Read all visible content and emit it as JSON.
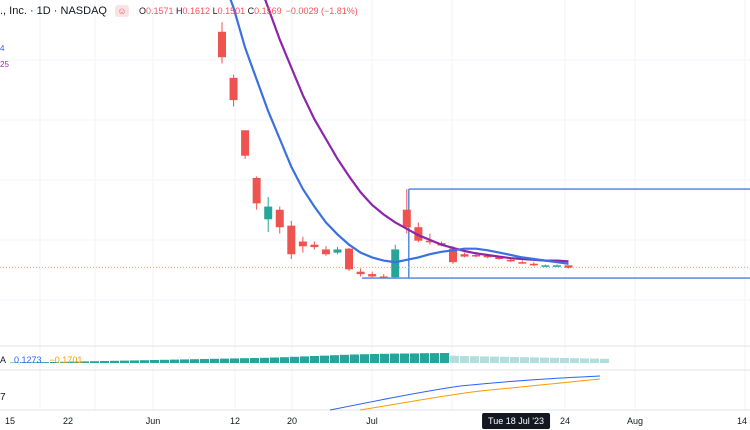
{
  "header": {
    "symbol": "., Inc. · 1D · NASDAQ",
    "emoji_icon": "face-icon",
    "open_label": "O",
    "open": "0.1571",
    "high_label": "H",
    "high": "0.1612",
    "low_label": "L",
    "low": "0.1501",
    "close_label": "C",
    "close": "0.1569",
    "change": "−0.0029 (−1.81%)"
  },
  "legend": {
    "ma_fast_suffix": "4",
    "ma_slow_suffix": "25"
  },
  "macd": {
    "prefix": "A",
    "macd_value": "0.1273",
    "signal_value": "−0.1701"
  },
  "pane_label": "7",
  "colors": {
    "up": "#26a69a",
    "down": "#ef5350",
    "ma_fast": "#3a70e0",
    "ma_slow": "#8e24aa",
    "range": "#4a7fe0",
    "grid": "#f0f3fa",
    "last_price": "#f7a26b",
    "macd_line": "#2962ff",
    "signal_line": "#ff9800"
  },
  "chart_data": {
    "type": "candlestick",
    "date_axis_labels": [
      "15",
      "22",
      "Jun",
      "12",
      "20",
      "Jul",
      "24",
      "Aug",
      "14"
    ],
    "crosshair_date": "Tue 18 Jul '23",
    "candles": [
      {
        "o": 3.1,
        "h": 3.22,
        "l": 2.7,
        "c": 2.78
      },
      {
        "o": 2.52,
        "h": 2.56,
        "l": 2.16,
        "c": 2.24
      },
      {
        "o": 1.86,
        "h": 1.86,
        "l": 1.5,
        "c": 1.54
      },
      {
        "o": 1.26,
        "h": 1.28,
        "l": 0.86,
        "c": 0.94
      },
      {
        "o": 0.74,
        "h": 1.02,
        "l": 0.58,
        "c": 0.9
      },
      {
        "o": 0.86,
        "h": 0.9,
        "l": 0.56,
        "c": 0.64
      },
      {
        "o": 0.66,
        "h": 0.72,
        "l": 0.24,
        "c": 0.3
      },
      {
        "o": 0.46,
        "h": 0.52,
        "l": 0.32,
        "c": 0.4
      },
      {
        "o": 0.42,
        "h": 0.46,
        "l": 0.36,
        "c": 0.39
      },
      {
        "o": 0.36,
        "h": 0.4,
        "l": 0.28,
        "c": 0.3
      },
      {
        "o": 0.32,
        "h": 0.39,
        "l": 0.3,
        "c": 0.36
      },
      {
        "o": 0.37,
        "h": 0.38,
        "l": 0.09,
        "c": 0.11
      },
      {
        "o": 0.08,
        "h": 0.12,
        "l": 0.02,
        "c": 0.05
      },
      {
        "o": 0.05,
        "h": 0.08,
        "l": 0.0,
        "c": 0.02
      },
      {
        "o": 0.02,
        "h": 0.05,
        "l": 0.0,
        "c": 0.01
      },
      {
        "o": 0.01,
        "h": 0.42,
        "l": 0.0,
        "c": 0.36
      },
      {
        "o": 0.86,
        "h": 1.12,
        "l": 0.56,
        "c": 0.64
      },
      {
        "o": 0.64,
        "h": 0.7,
        "l": 0.45,
        "c": 0.47
      },
      {
        "o": 0.47,
        "h": 0.56,
        "l": 0.42,
        "c": 0.45
      },
      {
        "o": 0.44,
        "h": 0.46,
        "l": 0.4,
        "c": 0.41
      },
      {
        "o": 0.37,
        "h": 0.4,
        "l": 0.18,
        "c": 0.2
      },
      {
        "o": 0.3,
        "h": 0.32,
        "l": 0.26,
        "c": 0.27
      },
      {
        "o": 0.29,
        "h": 0.33,
        "l": 0.26,
        "c": 0.28
      },
      {
        "o": 0.28,
        "h": 0.3,
        "l": 0.25,
        "c": 0.27
      },
      {
        "o": 0.26,
        "h": 0.28,
        "l": 0.23,
        "c": 0.24
      },
      {
        "o": 0.23,
        "h": 0.25,
        "l": 0.2,
        "c": 0.21
      },
      {
        "o": 0.2,
        "h": 0.22,
        "l": 0.18,
        "c": 0.19
      },
      {
        "o": 0.18,
        "h": 0.2,
        "l": 0.15,
        "c": 0.16
      },
      {
        "o": 0.16,
        "h": 0.17,
        "l": 0.15,
        "c": 0.16
      },
      {
        "o": 0.16,
        "h": 0.17,
        "l": 0.15,
        "c": 0.16
      },
      {
        "o": 0.16,
        "h": 0.16,
        "l": 0.12,
        "c": 0.13
      }
    ],
    "ma_fast": [
      3.8,
      3.4,
      2.9,
      2.5,
      2.1,
      1.75,
      1.4,
      1.12,
      0.9,
      0.7,
      0.55,
      0.42,
      0.32,
      0.26,
      0.22,
      0.2,
      0.23,
      0.26,
      0.3,
      0.33,
      0.35,
      0.37,
      0.37,
      0.35,
      0.32,
      0.29,
      0.26,
      0.24,
      0.22,
      0.2,
      0.18
    ],
    "ma_slow": [
      5.0,
      4.6,
      4.2,
      3.8,
      3.4,
      3.0,
      2.65,
      2.3,
      2.0,
      1.75,
      1.5,
      1.28,
      1.08,
      0.92,
      0.8,
      0.7,
      0.62,
      0.54,
      0.48,
      0.42,
      0.38,
      0.34,
      0.31,
      0.29,
      0.27,
      0.25,
      0.24,
      0.23,
      0.22,
      0.22,
      0.21
    ],
    "range_box": {
      "top": 1.12,
      "bottom": 0.0
    },
    "last_price": 0.16,
    "ylim": [
      -0.1,
      3.5
    ],
    "macd_hist": [
      -0.05,
      -0.06,
      -0.07,
      -0.09,
      -0.1,
      -0.12,
      -0.14,
      -0.16,
      -0.18,
      -0.2,
      -0.22,
      -0.24,
      -0.26,
      -0.28,
      -0.3,
      -0.32,
      -0.34,
      -0.36,
      -0.38,
      -0.4,
      -0.42,
      -0.44,
      -0.46,
      -0.48,
      -0.5,
      -0.52,
      -0.55,
      -0.58,
      -0.62,
      -0.66,
      -0.7,
      -0.74,
      -0.78,
      -0.82,
      -0.85,
      -0.88,
      -0.9,
      -0.92,
      -0.94,
      -0.95,
      -0.96,
      -0.98,
      -0.99,
      -1.0,
      -0.72,
      -0.7,
      -0.68,
      -0.66,
      -0.64,
      -0.62,
      -0.6,
      -0.58,
      -0.56,
      -0.54,
      -0.52,
      -0.5,
      -0.48,
      -0.46,
      -0.44,
      -0.42
    ]
  }
}
